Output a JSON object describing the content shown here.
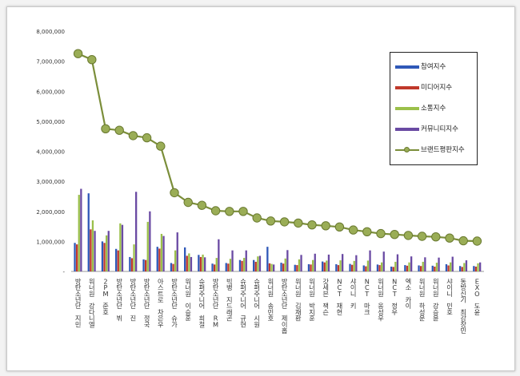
{
  "chart_data": {
    "type": "bar",
    "ylim": [
      0,
      8000000
    ],
    "yticks": [
      "-",
      "1,000,000",
      "2,000,000",
      "3,000,000",
      "4,000,000",
      "5,000,000",
      "6,000,000",
      "7,000,000",
      "8,000,000"
    ],
    "ytick_values": [
      0,
      1000000,
      2000000,
      3000000,
      4000000,
      5000000,
      6000000,
      7000000,
      8000000
    ],
    "categories": [
      "방탄소년단 지민",
      "워너원 강다니엘",
      "2PM 준호",
      "방탄소년단 뷔",
      "방탄소년단 진",
      "방탄소년단 정국",
      "아스트로 차은우",
      "방탄소년단 슈가",
      "워너원 이승훈",
      "슈퍼주니어 희철",
      "방탄소년단 RM",
      "빅뱅 지드래곤",
      "슈퍼주니어 규현",
      "슈퍼주니어 시원",
      "워너원 송민호",
      "방탄소년단 제이홉",
      "워너원 김재환",
      "워너원 박지훈",
      "갓세븐 잭슨",
      "NCT 재현",
      "샤이니 키",
      "NCT 마크",
      "워너원 옹성우",
      "NCT 정우",
      "엑소 카이",
      "워너원 하성운",
      "워너원 강승윤",
      "샤이니 민호",
      "동방신기 최강창민",
      "EXO 도윤"
    ],
    "series": [
      {
        "name": "참여지수",
        "color": "#2f58b8",
        "values": [
          950000,
          2600000,
          1000000,
          750000,
          480000,
          400000,
          820000,
          280000,
          800000,
          550000,
          260000,
          280000,
          380000,
          380000,
          820000,
          290000,
          220000,
          240000,
          330000,
          240000,
          250000,
          200000,
          230000,
          160000,
          210000,
          200000,
          190000,
          240000,
          180000,
          180000
        ]
      },
      {
        "name": "미디어지수",
        "color": "#c0392b",
        "values": [
          900000,
          1400000,
          950000,
          700000,
          440000,
          380000,
          760000,
          250000,
          520000,
          480000,
          230000,
          260000,
          350000,
          320000,
          270000,
          260000,
          210000,
          230000,
          300000,
          210000,
          220000,
          170000,
          210000,
          150000,
          190000,
          180000,
          160000,
          200000,
          150000,
          160000
        ]
      },
      {
        "name": "소통지수",
        "color": "#9bc04a",
        "values": [
          2550000,
          1700000,
          1200000,
          1600000,
          900000,
          1650000,
          1250000,
          700000,
          600000,
          560000,
          450000,
          420000,
          450000,
          500000,
          250000,
          430000,
          400000,
          380000,
          360000,
          370000,
          350000,
          360000,
          300000,
          320000,
          300000,
          320000,
          290000,
          300000,
          280000,
          270000
        ]
      },
      {
        "name": "커뮤니티지수",
        "color": "#6a4aa3",
        "values": [
          2750000,
          1350000,
          1350000,
          1550000,
          2650000,
          2000000,
          1180000,
          1300000,
          480000,
          470000,
          1070000,
          700000,
          700000,
          520000,
          230000,
          710000,
          550000,
          590000,
          560000,
          580000,
          540000,
          700000,
          660000,
          570000,
          500000,
          470000,
          460000,
          490000,
          370000,
          300000
        ]
      },
      {
        "name": "브랜드평판지수",
        "color": "#7b8e3a",
        "values": [
          7250000,
          7050000,
          4750000,
          4700000,
          4520000,
          4450000,
          4170000,
          2620000,
          2300000,
          2200000,
          2020000,
          2000000,
          2000000,
          1780000,
          1680000,
          1650000,
          1610000,
          1550000,
          1520000,
          1480000,
          1380000,
          1320000,
          1260000,
          1230000,
          1200000,
          1170000,
          1150000,
          1110000,
          1020000,
          1010000
        ]
      }
    ],
    "legend_position": "right"
  }
}
